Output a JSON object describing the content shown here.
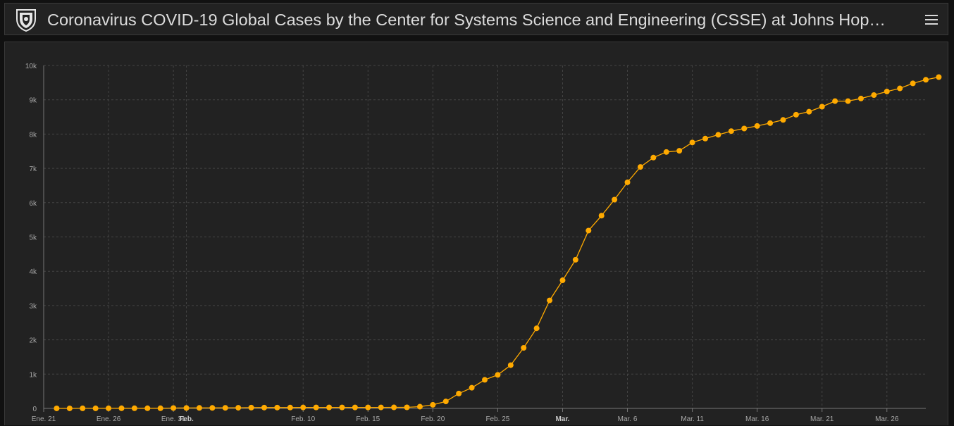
{
  "header": {
    "title": "Coronavirus COVID-19 Global Cases by the Center for Systems Science and Engineering (CSSE) at Johns Hop…",
    "logo_icon": "university-shield-icon",
    "menu_icon": "hamburger-menu-icon"
  },
  "colors": {
    "background": "#111111",
    "panel": "#222222",
    "series": "#ffaa00",
    "text": "#dcdcdc",
    "grid": "#444444"
  },
  "chart_data": {
    "type": "line",
    "title": "",
    "xlabel": "",
    "ylabel": "",
    "ylim": [
      0,
      10000
    ],
    "grid": true,
    "y_ticks": [
      {
        "value": 0,
        "label": "0"
      },
      {
        "value": 1000,
        "label": "1k"
      },
      {
        "value": 2000,
        "label": "2k"
      },
      {
        "value": 3000,
        "label": "3k"
      },
      {
        "value": 4000,
        "label": "4k"
      },
      {
        "value": 5000,
        "label": "5k"
      },
      {
        "value": 6000,
        "label": "6k"
      },
      {
        "value": 7000,
        "label": "7k"
      },
      {
        "value": 8000,
        "label": "8k"
      },
      {
        "value": 9000,
        "label": "9k"
      },
      {
        "value": 10000,
        "label": "10k"
      }
    ],
    "x_ticks": [
      {
        "date": "2020-01-21",
        "label": "Ene. 21",
        "bold": false
      },
      {
        "date": "2020-01-26",
        "label": "Ene. 26",
        "bold": false
      },
      {
        "date": "2020-01-31",
        "label": "Ene. 31",
        "bold": false
      },
      {
        "date": "2020-02-01",
        "label": "Feb.",
        "bold": true
      },
      {
        "date": "2020-02-10",
        "label": "Feb. 10",
        "bold": false
      },
      {
        "date": "2020-02-15",
        "label": "Feb. 15",
        "bold": false
      },
      {
        "date": "2020-02-20",
        "label": "Feb. 20",
        "bold": false
      },
      {
        "date": "2020-02-25",
        "label": "Feb. 25",
        "bold": false
      },
      {
        "date": "2020-03-01",
        "label": "Mar.",
        "bold": true
      },
      {
        "date": "2020-03-06",
        "label": "Mar. 6",
        "bold": false
      },
      {
        "date": "2020-03-11",
        "label": "Mar. 11",
        "bold": false
      },
      {
        "date": "2020-03-16",
        "label": "Mar. 16",
        "bold": false
      },
      {
        "date": "2020-03-21",
        "label": "Mar. 21",
        "bold": false
      },
      {
        "date": "2020-03-26",
        "label": "Mar. 26",
        "bold": false
      }
    ],
    "x_domain": [
      "2020-01-21",
      "2020-03-29"
    ],
    "series": [
      {
        "color": "#ffaa00",
        "points": [
          [
            "2020-01-22",
            1
          ],
          [
            "2020-01-23",
            1
          ],
          [
            "2020-01-24",
            2
          ],
          [
            "2020-01-25",
            2
          ],
          [
            "2020-01-26",
            3
          ],
          [
            "2020-01-27",
            4
          ],
          [
            "2020-01-28",
            4
          ],
          [
            "2020-01-29",
            4
          ],
          [
            "2020-01-30",
            4
          ],
          [
            "2020-01-31",
            11
          ],
          [
            "2020-02-01",
            12
          ],
          [
            "2020-02-02",
            15
          ],
          [
            "2020-02-03",
            15
          ],
          [
            "2020-02-04",
            16
          ],
          [
            "2020-02-05",
            19
          ],
          [
            "2020-02-06",
            23
          ],
          [
            "2020-02-07",
            24
          ],
          [
            "2020-02-08",
            24
          ],
          [
            "2020-02-09",
            25
          ],
          [
            "2020-02-10",
            27
          ],
          [
            "2020-02-11",
            28
          ],
          [
            "2020-02-12",
            28
          ],
          [
            "2020-02-13",
            28
          ],
          [
            "2020-02-14",
            28
          ],
          [
            "2020-02-15",
            28
          ],
          [
            "2020-02-16",
            29
          ],
          [
            "2020-02-17",
            30
          ],
          [
            "2020-02-18",
            31
          ],
          [
            "2020-02-19",
            51
          ],
          [
            "2020-02-20",
            104
          ],
          [
            "2020-02-21",
            204
          ],
          [
            "2020-02-22",
            433
          ],
          [
            "2020-02-23",
            602
          ],
          [
            "2020-02-24",
            833
          ],
          [
            "2020-02-25",
            977
          ],
          [
            "2020-02-26",
            1261
          ],
          [
            "2020-02-27",
            1766
          ],
          [
            "2020-02-28",
            2337
          ],
          [
            "2020-02-29",
            3150
          ],
          [
            "2020-03-01",
            3736
          ],
          [
            "2020-03-02",
            4335
          ],
          [
            "2020-03-03",
            5186
          ],
          [
            "2020-03-04",
            5621
          ],
          [
            "2020-03-05",
            6088
          ],
          [
            "2020-03-06",
            6593
          ],
          [
            "2020-03-07",
            7041
          ],
          [
            "2020-03-08",
            7314
          ],
          [
            "2020-03-09",
            7478
          ],
          [
            "2020-03-10",
            7513
          ],
          [
            "2020-03-11",
            7755
          ],
          [
            "2020-03-12",
            7869
          ],
          [
            "2020-03-13",
            7979
          ],
          [
            "2020-03-14",
            8086
          ],
          [
            "2020-03-15",
            8162
          ],
          [
            "2020-03-16",
            8236
          ],
          [
            "2020-03-17",
            8320
          ],
          [
            "2020-03-18",
            8413
          ],
          [
            "2020-03-19",
            8565
          ],
          [
            "2020-03-20",
            8652
          ],
          [
            "2020-03-21",
            8799
          ],
          [
            "2020-03-22",
            8961
          ],
          [
            "2020-03-23",
            8961
          ],
          [
            "2020-03-24",
            9037
          ],
          [
            "2020-03-25",
            9137
          ],
          [
            "2020-03-26",
            9241
          ],
          [
            "2020-03-27",
            9332
          ],
          [
            "2020-03-28",
            9478
          ],
          [
            "2020-03-29",
            9583
          ],
          [
            "2020-03-30",
            9661
          ]
        ]
      }
    ]
  }
}
